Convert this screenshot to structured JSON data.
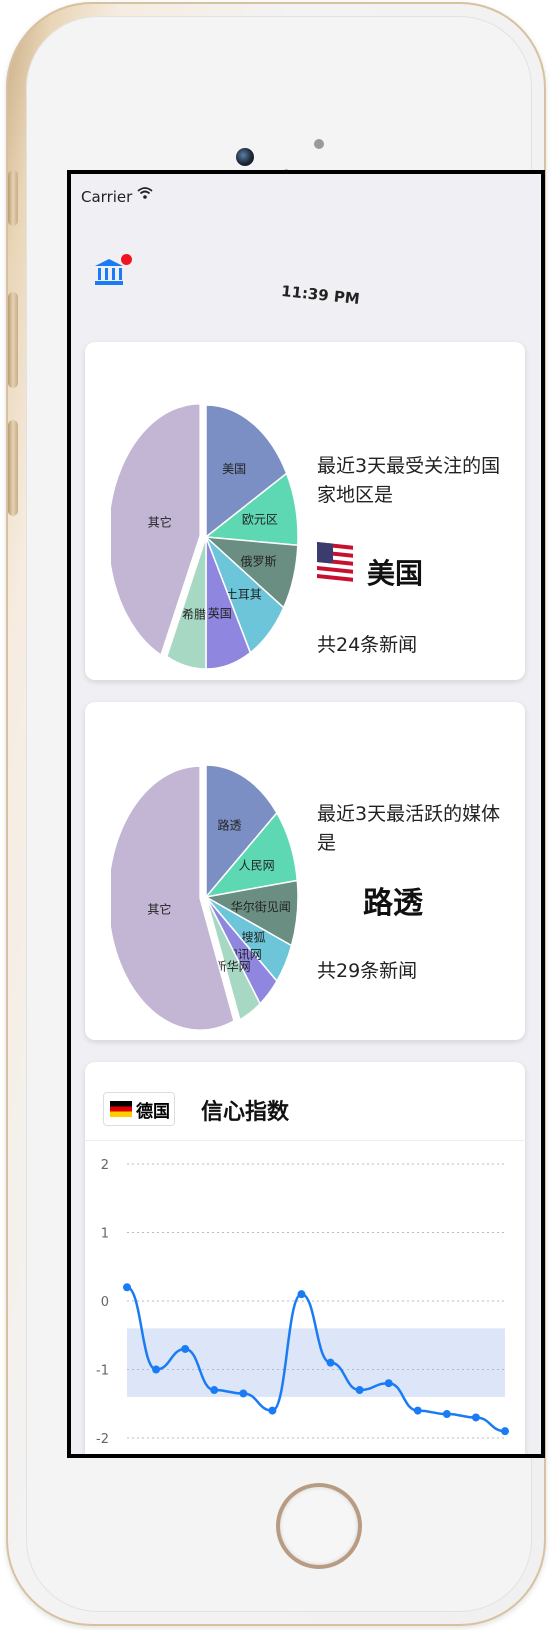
{
  "status": {
    "carrier": "Carrier",
    "time": "11:39 PM"
  },
  "icons": {
    "app": "bank-icon",
    "search": "search-icon",
    "star": "star-icon",
    "more": "more-vertical-icon",
    "wifi": "wifi-icon",
    "battery": "battery-icon"
  },
  "colors": {
    "accent": "#1a7cf5",
    "badge": "#f0141e",
    "line": "#1a7cf5"
  },
  "card1": {
    "title": "最近3天最受关注的国家地区是",
    "top_value": "美国",
    "count": "共24条新闻"
  },
  "card2": {
    "title": "最近3天最活跃的媒体是",
    "top_value": "路透",
    "count": "共29条新闻"
  },
  "card3": {
    "country": "德国",
    "title": "信心指数"
  },
  "chart_data": [
    {
      "type": "pie",
      "slices": [
        {
          "label": "美国",
          "value": 17,
          "color": "#7b8fc4"
        },
        {
          "label": "欧元区",
          "value": 9,
          "color": "#5dd8b2"
        },
        {
          "label": "俄罗斯",
          "value": 8,
          "color": "#6a8f82"
        },
        {
          "label": "土耳其",
          "value": 8,
          "color": "#6cc5d8"
        },
        {
          "label": "英国",
          "value": 8,
          "color": "#8f86e0"
        },
        {
          "label": "希腊",
          "value": 7,
          "color": "#a7d8c4"
        },
        {
          "label": "其它",
          "value": 43,
          "color": "#c2b6d4"
        }
      ]
    },
    {
      "type": "pie",
      "slices": [
        {
          "label": "路透",
          "value": 14,
          "color": "#7b8fc4"
        },
        {
          "label": "人民网",
          "value": 9,
          "color": "#5dd8b2"
        },
        {
          "label": "华尔街见闻",
          "value": 8,
          "color": "#6a8f82"
        },
        {
          "label": "搜狐",
          "value": 5,
          "color": "#6cc5d8"
        },
        {
          "label": "和讯网",
          "value": 4,
          "color": "#8f86e0"
        },
        {
          "label": "新华网",
          "value": 4,
          "color": "#a7d8c4"
        },
        {
          "label": "其它",
          "value": 56,
          "color": "#c2b6d4"
        }
      ]
    },
    {
      "type": "line",
      "yticks": [
        "2",
        "1",
        "0",
        "-1",
        "-2"
      ],
      "ylim": [
        -2,
        2
      ],
      "x": [
        0,
        1,
        2,
        3,
        4,
        5,
        6,
        7,
        8,
        9,
        10,
        11,
        12,
        13
      ],
      "values": [
        0.2,
        -1.0,
        -0.7,
        -1.3,
        -1.35,
        -1.6,
        0.1,
        -0.9,
        -1.3,
        -1.2,
        -1.6,
        -1.65,
        -1.7,
        -1.9
      ],
      "band": [
        -0.4,
        -1.4
      ]
    }
  ]
}
